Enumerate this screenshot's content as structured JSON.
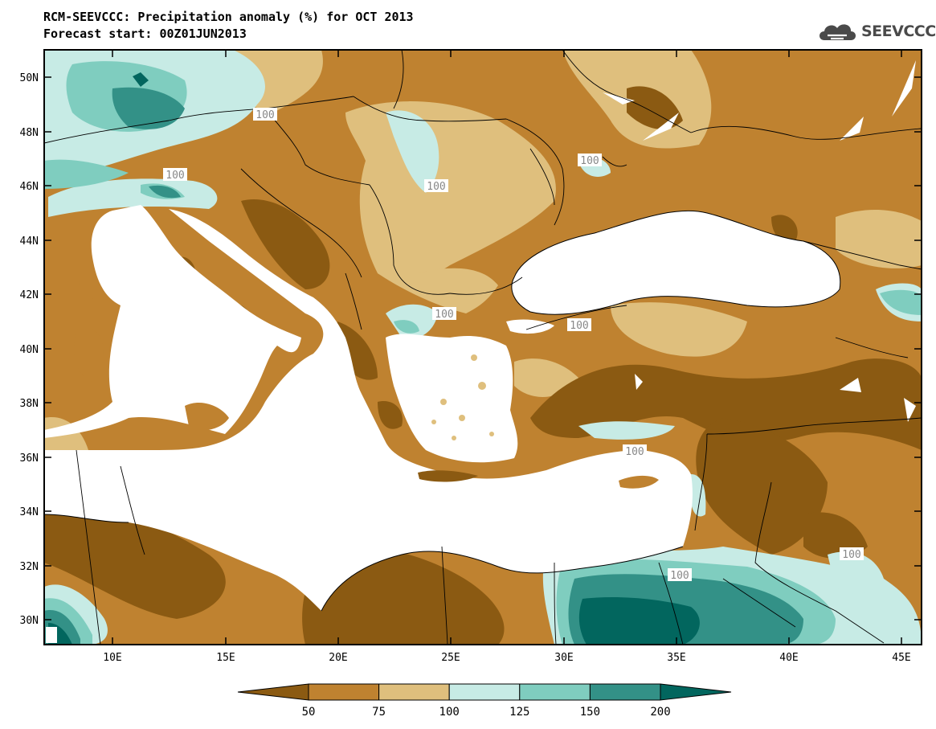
{
  "header": {
    "title": "RCM-SEEVCCC: Precipitation anomaly (%) for OCT 2013",
    "subtitle": "Forecast start: 00Z01JUN2013",
    "logo_text": "SEEVCCC"
  },
  "map": {
    "lat_labels": [
      "50N",
      "48N",
      "46N",
      "44N",
      "42N",
      "40N",
      "38N",
      "36N",
      "34N",
      "32N",
      "30N"
    ],
    "lon_labels": [
      "10E",
      "15E",
      "20E",
      "25E",
      "30E",
      "35E",
      "40E",
      "45E"
    ],
    "contour_labels": [
      "100",
      "100",
      "100",
      "100",
      "100",
      "100",
      "100",
      "100",
      "100"
    ],
    "anomaly_category_colors": {
      "lt50": "#8b5a12",
      "50_75": "#bf8230",
      "75_100": "#dfbf7d",
      "100_125": "#c7ebe5",
      "125_150": "#7fcdbf",
      "150_200": "#339187",
      "gt200": "#02665e"
    },
    "land_sea_color": "#ffffff",
    "border_color": "#000000"
  },
  "legend": {
    "tick_labels": [
      "50",
      "75",
      "100",
      "125",
      "150",
      "200"
    ],
    "colors": [
      "#8b5a12",
      "#bf8230",
      "#dfbf7d",
      "#c7ebe5",
      "#7fcdbf",
      "#339187",
      "#02665e"
    ]
  }
}
